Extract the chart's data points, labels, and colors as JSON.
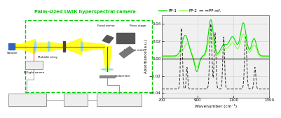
{
  "title": "Palm-sized LWIR hyperspectral camera",
  "title_color": "#00cc00",
  "xlabel": "Wavenumber (cm⁻¹)",
  "ylabel": "Absorbance (a.u.)",
  "xlim": [
    700,
    1300
  ],
  "ylim": [
    -0.045,
    0.05
  ],
  "yticks": [
    -0.04,
    -0.02,
    0.0,
    0.02,
    0.04
  ],
  "xticks": [
    700,
    900,
    1100,
    1300
  ],
  "grid_color": "#cccccc",
  "pp1_color": "#00dd00",
  "pp2_color": "#88ff44",
  "ppref_color": "#333333",
  "bg_color": "#ffffff",
  "plot_bg_color": "#f0f0f0",
  "green_box_color": "#00cc00",
  "beam_color": "#ffff00",
  "lens_color": "#88ddee"
}
